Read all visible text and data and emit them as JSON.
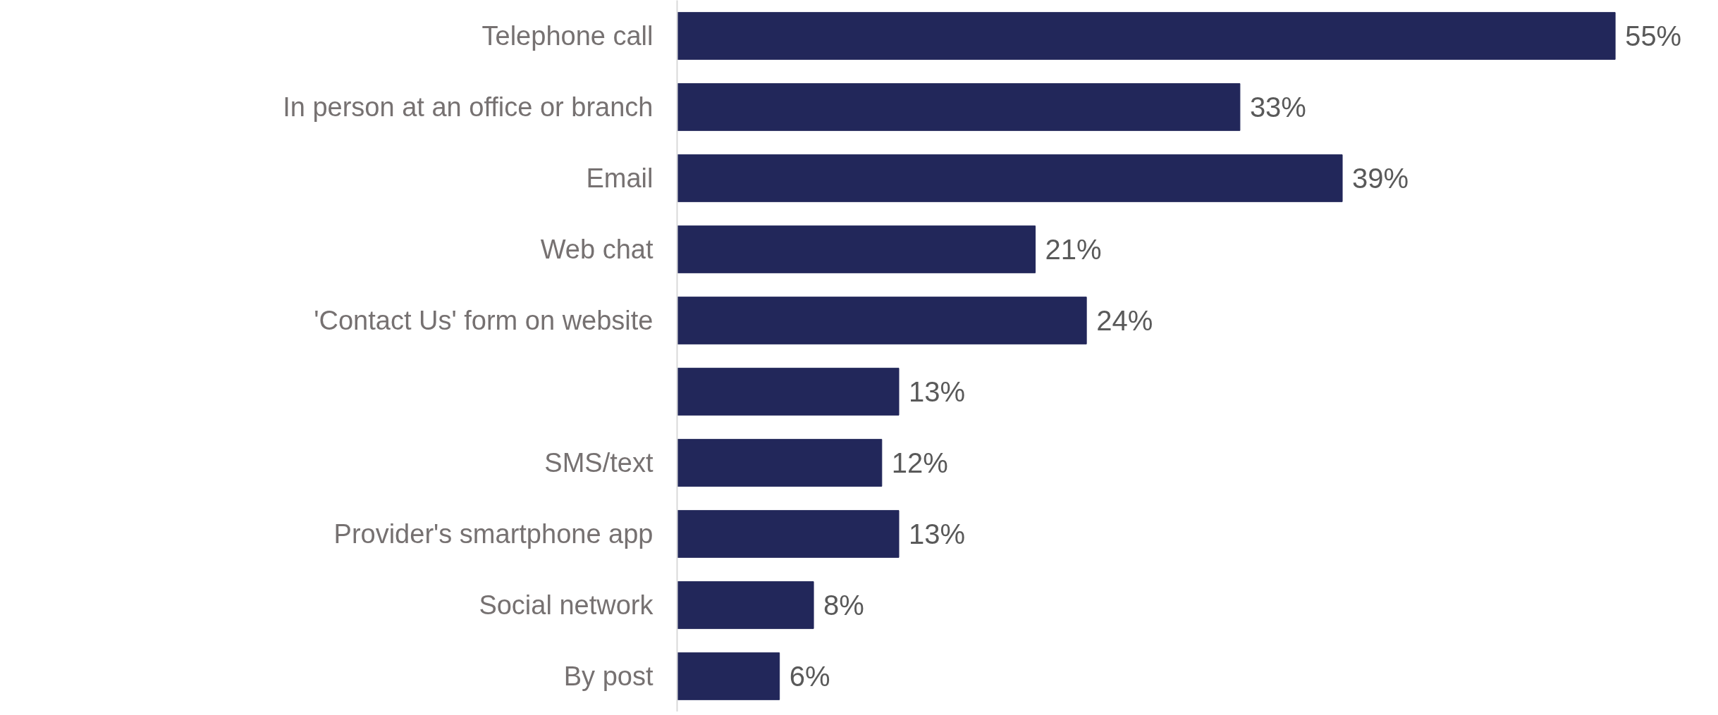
{
  "chart_data": {
    "type": "bar",
    "orientation": "horizontal",
    "categories": [
      "Telephone call",
      "In person at an office or branch",
      "Email",
      "Web chat",
      "'Contact Us' form on website",
      null,
      "SMS/text",
      "Provider's smartphone app",
      "Social network",
      "By post"
    ],
    "values": [
      55,
      33,
      39,
      21,
      24,
      13,
      12,
      13,
      8,
      6
    ],
    "value_labels": [
      "55%",
      "33%",
      "39%",
      "21%",
      "24%",
      "13%",
      "12%",
      "13%",
      "8%",
      "6%"
    ],
    "color": "#22275a",
    "grid": false
  }
}
